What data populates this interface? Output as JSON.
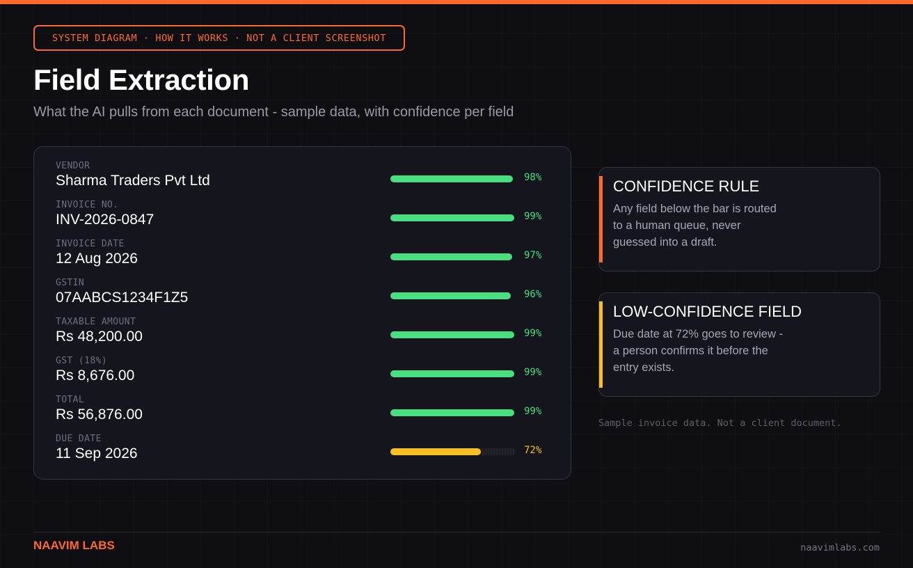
{
  "header": {
    "tag": "SYSTEM DIAGRAM · HOW IT WORKS · NOT A CLIENT SCREENSHOT",
    "title": "Field Extraction",
    "subtitle": "What the AI pulls from each document - sample data, with confidence per field"
  },
  "colors": {
    "accent": "#ff6a2c",
    "high_confidence": "#4ade80",
    "low_confidence": "#fbbf24"
  },
  "fields": [
    {
      "label": "VENDOR",
      "value": "Sharma Traders Pvt Ltd",
      "confidence": 0.98,
      "confidence_text": "98%",
      "level": "high"
    },
    {
      "label": "INVOICE NO.",
      "value": "INV-2026-0847",
      "confidence": 0.99,
      "confidence_text": "99%",
      "level": "high"
    },
    {
      "label": "INVOICE DATE",
      "value": "12 Aug 2026",
      "confidence": 0.97,
      "confidence_text": "97%",
      "level": "high"
    },
    {
      "label": "GSTIN",
      "value": "07AABCS1234F1Z5",
      "confidence": 0.96,
      "confidence_text": "96%",
      "level": "high"
    },
    {
      "label": "TAXABLE AMOUNT",
      "value": "Rs 48,200.00",
      "confidence": 0.99,
      "confidence_text": "99%",
      "level": "high"
    },
    {
      "label": "GST (18%)",
      "value": "Rs 8,676.00",
      "confidence": 0.99,
      "confidence_text": "99%",
      "level": "high"
    },
    {
      "label": "TOTAL",
      "value": "Rs 56,876.00",
      "confidence": 0.99,
      "confidence_text": "99%",
      "level": "high"
    },
    {
      "label": "DUE DATE",
      "value": "11 Sep 2026",
      "confidence": 0.72,
      "confidence_text": "72%",
      "level": "low"
    }
  ],
  "notes": [
    {
      "title": "CONFIDENCE RULE",
      "body": "Any field below the bar is routed to a human queue, never guessed into a draft.",
      "accent": "#ff6a2c"
    },
    {
      "title": "LOW-CONFIDENCE FIELD",
      "body": "Due date at 72% goes to review - a person confirms it before the entry exists.",
      "accent": "#fbbf24"
    }
  ],
  "disclaimer": "Sample invoice data. Not a client document.",
  "footer": {
    "brand": "NAAVIM LABS",
    "domain": "naavimlabs.com"
  }
}
